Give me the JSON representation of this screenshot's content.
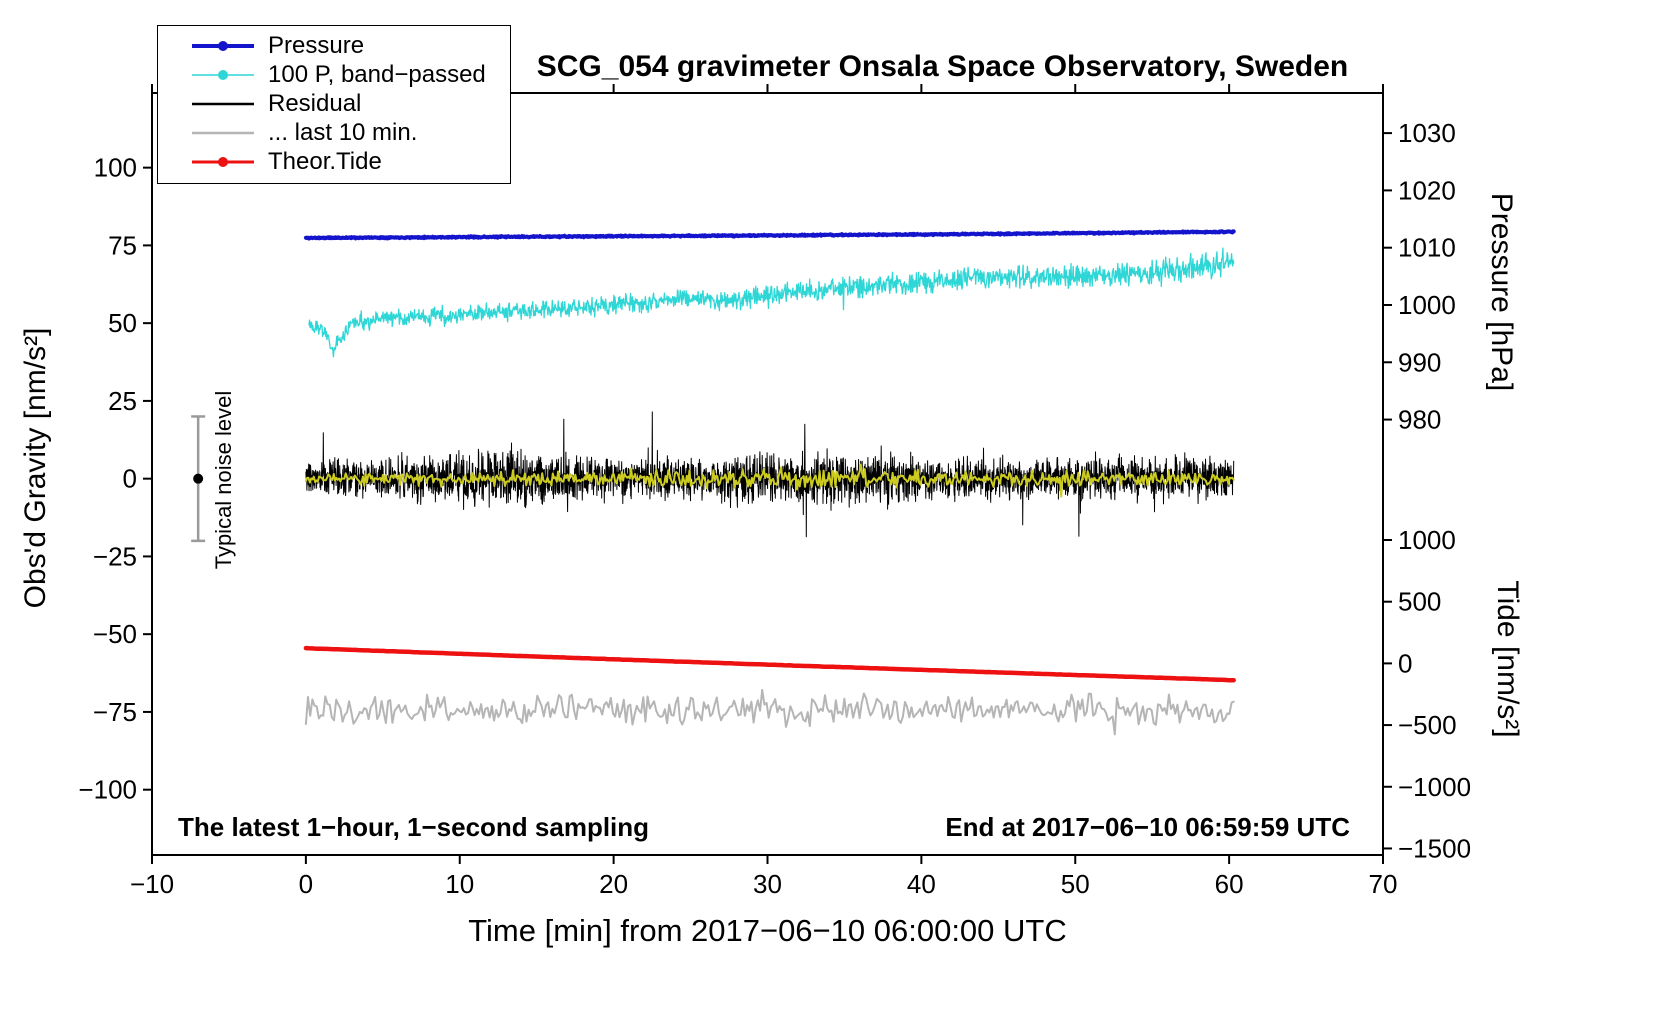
{
  "chart_data": {
    "type": "line",
    "title": "SCG_054 gravimeter Onsala Space Observatory, Sweden",
    "xlabel": "Time [min] from 2017−06−10 06:00:00 UTC",
    "ylabel_left": "Obs'd Gravity [nm/s²]",
    "ylabel_pressure": "Pressure [hPa]",
    "ylabel_tide": "Tide [nm/s²]",
    "annotations": {
      "sampling": "The latest 1−hour, 1−second sampling",
      "end_time": "End at 2017−06−10 06:59:59 UTC"
    },
    "xlim": [
      -10,
      70
    ],
    "ylim_left": [
      -121,
      124
    ],
    "pressure_lim": [
      904,
      1037
    ],
    "tide_lim": [
      -1553,
      4623
    ],
    "xticks": [
      -10,
      0,
      10,
      20,
      30,
      40,
      50,
      60,
      70
    ],
    "gravity_ticks": [
      100,
      75,
      50,
      25,
      0,
      -25,
      -50,
      -75,
      -100
    ],
    "pressure_ticks": [
      1030,
      1020,
      1010,
      1000,
      990,
      980
    ],
    "tide_ticks": [
      1000,
      500,
      0,
      -500,
      -1000,
      -1500
    ],
    "noise_marker": {
      "x": -7,
      "center": 0,
      "half_range": 20,
      "label": "Typical noise level"
    },
    "legend": [
      {
        "label": "Pressure",
        "color": "#1414cc",
        "width": 4,
        "marker": true
      },
      {
        "label": "100 P, band−passed",
        "color": "#2fd6d6",
        "width": 1.5,
        "marker": true
      },
      {
        "label": "Residual",
        "color": "#000000",
        "width": 2.5,
        "marker": false
      },
      {
        "label": "... last 10 min.",
        "color": "#b5b5b5",
        "width": 2.5,
        "marker": false
      },
      {
        "label": "Theor.Tide",
        "color": "#ed1111",
        "width": 3,
        "marker": true
      }
    ],
    "series": [
      {
        "name": "last-10-min",
        "color": "#b5b5b5",
        "width": 2,
        "x0": 0,
        "x1": 60.3,
        "n": 430,
        "seed": 66,
        "control": [
          [
            0,
            -74
          ],
          [
            60.3,
            -74.5
          ]
        ],
        "noise_profile": [
          [
            0,
            3.8
          ],
          [
            60.3,
            3.8
          ]
        ],
        "spike_prob": 0.012,
        "spike_amp": 5,
        "note": "residual of last 10 min, plotted offset near -75 nm/s2"
      },
      {
        "name": "pressure",
        "color": "#1414cc",
        "width": 4,
        "x0": 0,
        "x1": 60.3,
        "n": 1400,
        "seed": 11,
        "control": [
          [
            0,
            77.4
          ],
          [
            15,
            77.8
          ],
          [
            30,
            78.2
          ],
          [
            45,
            78.7
          ],
          [
            60.3,
            79.4
          ]
        ],
        "noise": 0.18,
        "note": "approx 1011.7 to 1012.7 hPa on pressure axis"
      },
      {
        "name": "band-passed-pressure",
        "color": "#2fd6d6",
        "width": 1.3,
        "x0": 0.2,
        "x1": 60.3,
        "n": 1700,
        "seed": 22,
        "control": [
          [
            0.2,
            50.5
          ],
          [
            1,
            48.5
          ],
          [
            1.8,
            42
          ],
          [
            3,
            50
          ],
          [
            5,
            51.5
          ],
          [
            8,
            52
          ],
          [
            12,
            53.5
          ],
          [
            16,
            54.5
          ],
          [
            20,
            56
          ],
          [
            23,
            57
          ],
          [
            25,
            58.5
          ],
          [
            27,
            57
          ],
          [
            30,
            59
          ],
          [
            33,
            60.5
          ],
          [
            36,
            62
          ],
          [
            40,
            63
          ],
          [
            44,
            64.5
          ],
          [
            48,
            65
          ],
          [
            52,
            65.5
          ],
          [
            56,
            67
          ],
          [
            58,
            68
          ],
          [
            60.3,
            70
          ]
        ],
        "noise_profile": [
          [
            0,
            2.2
          ],
          [
            20,
            2.4
          ],
          [
            35,
            2.8
          ],
          [
            50,
            3.2
          ],
          [
            60.3,
            3.6
          ]
        ],
        "spike_prob": 0.006,
        "spike_amp": 5,
        "note": "100 x pressure, band-passed"
      },
      {
        "name": "residual",
        "color": "#000000",
        "width": 1,
        "x0": 0,
        "x1": 60.3,
        "n": 3620,
        "seed": 33,
        "control": [
          [
            0,
            0
          ],
          [
            60.3,
            0
          ]
        ],
        "noise_profile": [
          [
            0,
            4.5
          ],
          [
            6,
            5
          ],
          [
            8,
            6.5
          ],
          [
            10,
            7
          ],
          [
            12,
            7.5
          ],
          [
            14,
            8
          ],
          [
            16,
            6
          ],
          [
            18,
            5.5
          ],
          [
            22,
            5.5
          ],
          [
            26,
            5
          ],
          [
            28,
            6
          ],
          [
            30,
            6.5
          ],
          [
            33,
            6.5
          ],
          [
            36,
            6
          ],
          [
            40,
            5.5
          ],
          [
            44,
            5.2
          ],
          [
            48,
            5.5
          ],
          [
            52,
            5
          ],
          [
            56,
            5.2
          ],
          [
            60.3,
            5.2
          ]
        ],
        "spike_prob": 0.005,
        "spike_amp": 12,
        "note": "gravity residual around 0, spikes to about +/-25 nm/s2"
      },
      {
        "name": "residual-smoothed",
        "color": "#cbcb21",
        "width": 2,
        "x0": 0,
        "x1": 60.3,
        "n": 700,
        "seed": 44,
        "control": [
          [
            0,
            0
          ],
          [
            60.3,
            0
          ]
        ],
        "noise_profile": [
          [
            0,
            1.6
          ],
          [
            10,
            1.7
          ],
          [
            20,
            1.8
          ],
          [
            28,
            2.4
          ],
          [
            30,
            2.8
          ],
          [
            33,
            2.8
          ],
          [
            36,
            2.4
          ],
          [
            40,
            1.9
          ],
          [
            50,
            1.8
          ],
          [
            60.3,
            1.9
          ]
        ],
        "spike_prob": 0.01,
        "spike_amp": 3,
        "note": "yellow smoothed residual overlay"
      },
      {
        "name": "theoretical-tide",
        "color": "#ed1111",
        "width": 4.5,
        "x0": 0,
        "x1": 60.3,
        "n": 300,
        "seed": 55,
        "control": [
          [
            0,
            -54.5
          ],
          [
            15,
            -57.2
          ],
          [
            30,
            -59.8
          ],
          [
            45,
            -62.3
          ],
          [
            60.3,
            -64.8
          ]
        ],
        "noise": 0.03,
        "note": "approx +120 down to -140 nm/s2 on tide axis"
      }
    ]
  }
}
